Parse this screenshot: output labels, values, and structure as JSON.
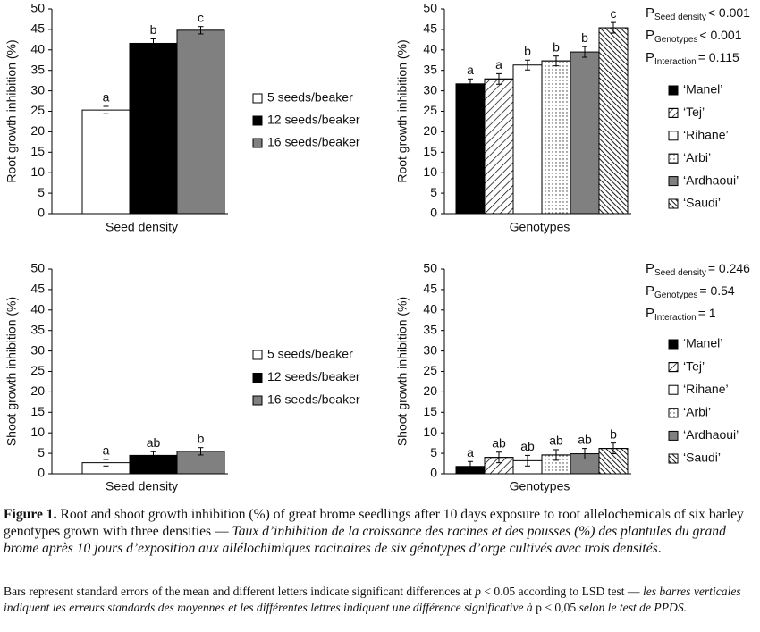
{
  "chart_data": [
    {
      "type": "bar",
      "ylabel": "Root growth inhibition (%)",
      "xlabel": "Seed density",
      "categories": [
        null
      ],
      "ylim": [
        0,
        50
      ],
      "yticks": [
        0,
        5,
        10,
        15,
        20,
        25,
        30,
        35,
        40,
        45,
        50
      ],
      "series": [
        {
          "name": "5 seeds/beaker",
          "color": "#ffffff",
          "values": [
            25.3
          ],
          "errors": [
            0.9
          ],
          "letters": [
            "a"
          ]
        },
        {
          "name": "12 seeds/beaker",
          "color": "#000000",
          "values": [
            41.6
          ],
          "errors": [
            1.1
          ],
          "letters": [
            "b"
          ]
        },
        {
          "name": "16 seeds/beaker",
          "color": "#808080",
          "values": [
            44.8
          ],
          "errors": [
            0.9
          ],
          "letters": [
            "c"
          ]
        }
      ]
    },
    {
      "type": "bar",
      "ylabel": "Root growth inhibition (%)",
      "xlabel": "Genotypes",
      "categories": [
        null
      ],
      "ylim": [
        0,
        50
      ],
      "yticks": [
        0,
        5,
        10,
        15,
        20,
        25,
        30,
        35,
        40,
        45,
        50
      ],
      "annotations": [
        {
          "symbol": "P",
          "subscript": "Seed density",
          "text": "< 0.001"
        },
        {
          "symbol": "P",
          "subscript": "Genotypes",
          "text": "< 0.001"
        },
        {
          "symbol": "P",
          "subscript": "Interaction",
          "text": "= 0.115"
        }
      ],
      "series": [
        {
          "name": "‘Manel’",
          "color": "#000000",
          "values": [
            31.7
          ],
          "errors": [
            1.2
          ],
          "letters": [
            "a"
          ]
        },
        {
          "name": "‘Tej’",
          "color": "#ffffff",
          "pattern": "hatch",
          "values": [
            32.9
          ],
          "errors": [
            1.3
          ],
          "letters": [
            "a"
          ]
        },
        {
          "name": "‘Rihane’",
          "color": "#ffffff",
          "values": [
            36.3
          ],
          "errors": [
            1.2
          ],
          "letters": [
            "b"
          ]
        },
        {
          "name": "‘Arbi’",
          "color": "#ffffff",
          "pattern": "dots",
          "values": [
            37.3
          ],
          "errors": [
            1.2
          ],
          "letters": [
            "b"
          ]
        },
        {
          "name": "‘Ardhaoui’",
          "color": "#808080",
          "values": [
            39.5
          ],
          "errors": [
            1.3
          ],
          "letters": [
            "b"
          ]
        },
        {
          "name": "‘Saudi’",
          "color": "#ffffff",
          "pattern": "dense",
          "values": [
            45.4
          ],
          "errors": [
            1.3
          ],
          "letters": [
            "c"
          ]
        }
      ]
    },
    {
      "type": "bar",
      "ylabel": "Shoot growth inhibition (%)",
      "xlabel": "Seed density",
      "categories": [
        null
      ],
      "ylim": [
        0,
        50
      ],
      "yticks": [
        0,
        5,
        10,
        15,
        20,
        25,
        30,
        35,
        40,
        45,
        50
      ],
      "series": [
        {
          "name": "5 seeds/beaker",
          "color": "#ffffff",
          "values": [
            2.7
          ],
          "errors": [
            0.8
          ],
          "letters": [
            "a"
          ]
        },
        {
          "name": "12 seeds/beaker",
          "color": "#000000",
          "values": [
            4.5
          ],
          "errors": [
            0.9
          ],
          "letters": [
            "ab"
          ]
        },
        {
          "name": "16 seeds/beaker",
          "color": "#808080",
          "values": [
            5.5
          ],
          "errors": [
            0.9
          ],
          "letters": [
            "b"
          ]
        }
      ]
    },
    {
      "type": "bar",
      "ylabel": "Shoot growth inhibition (%)",
      "xlabel": "Genotypes",
      "categories": [
        null
      ],
      "ylim": [
        0,
        50
      ],
      "yticks": [
        0,
        5,
        10,
        15,
        20,
        25,
        30,
        35,
        40,
        45,
        50
      ],
      "annotations": [
        {
          "symbol": "P",
          "subscript": "Seed density",
          "text": "= 0.246"
        },
        {
          "symbol": "P",
          "subscript": "Genotypes",
          "text": "= 0.54"
        },
        {
          "symbol": "P",
          "subscript": "Interaction",
          "text": "= 1"
        }
      ],
      "series": [
        {
          "name": "‘Manel’",
          "color": "#000000",
          "values": [
            1.8
          ],
          "errors": [
            1.2
          ],
          "letters": [
            "a"
          ]
        },
        {
          "name": "‘Tej’",
          "color": "#ffffff",
          "pattern": "hatch",
          "values": [
            4.0
          ],
          "errors": [
            1.3
          ],
          "letters": [
            "ab"
          ]
        },
        {
          "name": "‘Rihane’",
          "color": "#ffffff",
          "values": [
            3.2
          ],
          "errors": [
            1.3
          ],
          "letters": [
            "ab"
          ]
        },
        {
          "name": "‘Arbi’",
          "color": "#ffffff",
          "pattern": "dots",
          "values": [
            4.6
          ],
          "errors": [
            1.3
          ],
          "letters": [
            "ab"
          ]
        },
        {
          "name": "‘Ardhaoui’",
          "color": "#808080",
          "values": [
            4.9
          ],
          "errors": [
            1.3
          ],
          "letters": [
            "ab"
          ]
        },
        {
          "name": "‘Saudi’",
          "color": "#ffffff",
          "pattern": "dense",
          "values": [
            6.2
          ],
          "errors": [
            1.3
          ],
          "letters": [
            "b"
          ]
        }
      ]
    }
  ],
  "caption": {
    "label": "Figure 1.",
    "segments": [
      {
        "text": "Root and shoot growth inhibition (%) of great brome seedlings after 10 days exposure to root allelochemicals of six barley genotypes grown with three densities — "
      },
      {
        "text": "Taux d’inhibition de la croissance des racines et des pousses (%) des plantules du grand brome après 10 jours d’exposition aux allélochimiques racinaires de six génotypes d’orge cultivés avec trois densités",
        "italic": true
      },
      {
        "text": "."
      }
    ]
  },
  "note": {
    "segments": [
      {
        "text": "Bars represent standard errors of the mean and different letters indicate significant differences at "
      },
      {
        "text": "p",
        "italic": true
      },
      {
        "text": " < 0.05 according to LSD test — "
      },
      {
        "text": "les barres verticales indiquent les erreurs standards des moyennes et les différentes lettres indiquent une différence significative à ",
        "italic": true
      },
      {
        "text": "p < 0,05"
      },
      {
        "text": " selon le test de PPDS.",
        "italic": true
      }
    ]
  }
}
